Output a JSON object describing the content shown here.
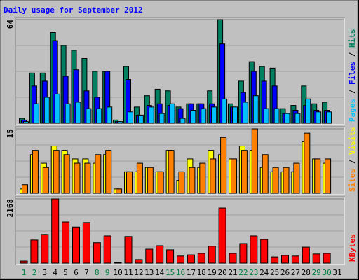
{
  "chart_data": {
    "type": "bar",
    "title": "Daily usage for September 2012",
    "categories": [
      "1",
      "2",
      "3",
      "4",
      "5",
      "6",
      "7",
      "8",
      "9",
      "10",
      "11",
      "12",
      "13",
      "14",
      "15",
      "16",
      "17",
      "18",
      "19",
      "20",
      "21",
      "22",
      "23",
      "24",
      "25",
      "26",
      "27",
      "28",
      "29",
      "30",
      "31"
    ],
    "category_colors": [
      "#008040",
      "#008040",
      "#000000",
      "#000000",
      "#000000",
      "#000000",
      "#000000",
      "#008040",
      "#008040",
      "#000000",
      "#000000",
      "#000000",
      "#000000",
      "#000000",
      "#008040",
      "#008040",
      "#000000",
      "#000000",
      "#000000",
      "#000000",
      "#000000",
      "#008040",
      "#008040",
      "#000000",
      "#000000",
      "#000000",
      "#000000",
      "#000000",
      "#008040",
      "#008040",
      "#000000"
    ],
    "panels": [
      {
        "ylim": [
          0,
          64
        ],
        "yticks": [
          64
        ],
        "label_order": [
          2,
          1,
          0
        ],
        "series": [
          {
            "name": "Hits",
            "color": "#008060",
            "values": [
              3,
              31,
              31,
              56,
              48,
              45,
              40,
              32,
              32,
              2,
              35,
              10,
              17,
              21,
              20,
              10,
              12,
              12,
              20,
              64,
              12,
              26,
              38,
              35,
              34,
              9,
              11,
              23,
              12,
              13,
              0
            ]
          },
          {
            "name": "Files",
            "color": "#0000ff",
            "values": [
              2,
              23,
              26,
              51,
              29,
              33,
              20,
              16,
              32,
              1,
              27,
              5,
              11,
              12,
              11,
              9,
              12,
              12,
              12,
              49,
              10,
              19,
              32,
              26,
              23,
              6,
              8,
              11,
              8,
              8,
              0
            ]
          },
          {
            "name": "Pages",
            "color": "#00c0ff",
            "values": [
              1,
              12,
              16,
              18,
              12,
              13,
              9,
              9,
              10,
              1,
              7,
              5,
              10,
              6,
              12,
              3,
              8,
              9,
              10,
              15,
              10,
              13,
              17,
              9,
              9,
              6,
              6,
              15,
              7,
              7,
              0
            ]
          }
        ]
      },
      {
        "ylim": [
          0,
          15
        ],
        "yticks": [
          15
        ],
        "label_order": [
          1,
          0
        ],
        "series": [
          {
            "name": "Visits",
            "color": "#ffff00",
            "values": [
              1,
              9,
              7,
              11,
              10,
              8,
              8,
              7,
              9,
              1,
              5,
              5,
              6,
              5,
              10,
              3,
              8,
              6,
              10,
              9,
              8,
              11,
              10,
              6,
              5,
              5,
              5,
              12,
              8,
              7,
              0
            ]
          },
          {
            "name": "Sites",
            "color": "#ff8000",
            "values": [
              2,
              10,
              6,
              10,
              9,
              7,
              7,
              9,
              10,
              1,
              5,
              7,
              6,
              5,
              10,
              5,
              6,
              7,
              8,
              13,
              8,
              10,
              15,
              9,
              6,
              6,
              7,
              14,
              8,
              8,
              0
            ]
          }
        ]
      },
      {
        "ylim": [
          0,
          2168
        ],
        "yticks": [
          2168
        ],
        "label_order": [
          0
        ],
        "series": [
          {
            "name": "KBytes",
            "color": "#ff0000",
            "values": [
              70,
              780,
              970,
              2168,
              1390,
              1220,
              1370,
              690,
              920,
              20,
              900,
              120,
              470,
              590,
              450,
              240,
              280,
              330,
              570,
              1860,
              330,
              660,
              920,
              800,
              210,
              260,
              240,
              540,
              310,
              330,
              0
            ]
          }
        ]
      }
    ]
  }
}
